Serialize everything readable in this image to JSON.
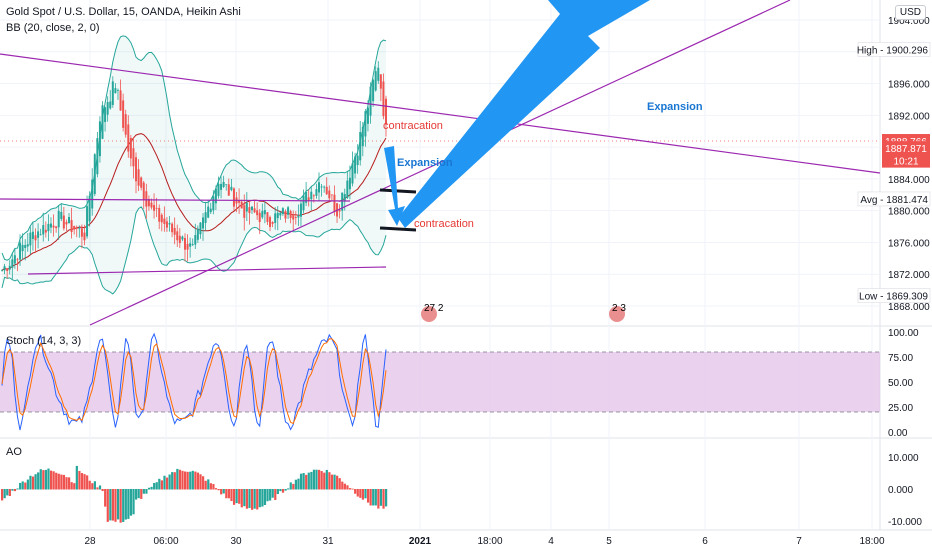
{
  "header": {
    "symbol_title": "Gold Spot / U.S. Dollar, 15, OANDA, Heikin Ashi",
    "bb_label": "BB (20, close, 2, 0)",
    "currency": "USD"
  },
  "colors": {
    "bull": "#26a69a",
    "bear": "#ef5350",
    "bb_band": "#26a69a",
    "bb_basis": "#b71c1c",
    "trendline": "#9c27b0",
    "arrow": "#2196f3",
    "stoch_k": "#2962ff",
    "stoch_d": "#ff6d00",
    "stoch_fill": "#e1bee7",
    "ao_up": "#26a69a",
    "ao_down": "#ef5350",
    "annotation_red": "#e53935",
    "annotation_blue": "#1976d2"
  },
  "chart_data": [
    {
      "type": "candlestick",
      "title": "Gold Spot / U.S. Dollar, 15, OANDA, Heikin Ashi",
      "indicator": "BB (20, close, 2, 0)",
      "ylim": [
        1867,
        1906
      ],
      "y_ticks": [
        "1904.000",
        "1900.000",
        "1896.000",
        "1892.000",
        "1888.000",
        "1884.000",
        "1880.000",
        "1876.000",
        "1872.000",
        "1868.000"
      ],
      "y_tick_values": [
        1904,
        1900,
        1896,
        1892,
        1888,
        1884,
        1880,
        1876,
        1872,
        1868
      ],
      "x_ticks": [
        "28",
        "06:00",
        "30",
        "31",
        "2021",
        "18:00",
        "4",
        "5",
        "6",
        "7",
        "18:00"
      ],
      "price_labels": [
        {
          "text": "High",
          "value": "1900.296",
          "y": 1900.296,
          "style": "plain"
        },
        {
          "text": "",
          "value": "1888.766",
          "y": 1888.766,
          "style": "red"
        },
        {
          "text": "",
          "value": "1887.871",
          "y": 1887.871,
          "style": "red"
        },
        {
          "text": "",
          "value": "10:21",
          "y": 1886.3,
          "style": "red"
        },
        {
          "text": "Avg",
          "value": "1881.474",
          "y": 1881.474,
          "style": "plain"
        },
        {
          "text": "Low",
          "value": "1869.309",
          "y": 1869.309,
          "style": "plain"
        }
      ],
      "annotations": [
        {
          "text": "contracation",
          "color": "red"
        },
        {
          "text": "Expansion",
          "color": "blue"
        },
        {
          "text": "contracation",
          "color": "red"
        },
        {
          "text": "Expansion",
          "color": "blue"
        }
      ],
      "event_badges": [
        "27 2",
        "2 3"
      ],
      "grid": true,
      "legend": "none"
    },
    {
      "type": "line",
      "title": "Stoch (14, 3, 3)",
      "ylim": [
        0,
        100
      ],
      "y_ticks": [
        "100.00",
        "75.00",
        "50.00",
        "25.00",
        "0.00"
      ],
      "y_tick_values": [
        100,
        75,
        50,
        25,
        0
      ],
      "band": [
        20,
        80
      ]
    },
    {
      "type": "bar",
      "title": "AO",
      "ylim": [
        -11,
        13
      ],
      "y_ticks": [
        "10.000",
        "0.000",
        "-10.000"
      ],
      "y_tick_values": [
        10,
        0,
        -10
      ]
    }
  ]
}
